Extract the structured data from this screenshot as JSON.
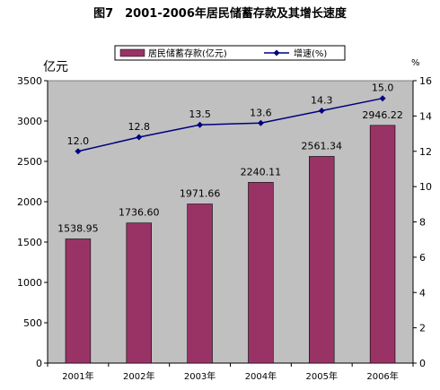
{
  "chart_data": {
    "type": "bar",
    "title": "图7　2001-2006年居民储蓄存款及其增长速度",
    "y_left_unit": "亿元",
    "y_right_unit": "%",
    "categories": [
      "2001年",
      "2002年",
      "2003年",
      "2004年",
      "2005年",
      "2006年"
    ],
    "series": [
      {
        "name": "居民储蓄存款(亿元)",
        "type": "bar",
        "axis": "left",
        "color": "#993366",
        "values": [
          1538.95,
          1736.6,
          1971.66,
          2240.11,
          2561.34,
          2946.22
        ],
        "labels": [
          "1538.95",
          "1736.60",
          "1971.66",
          "2240.11",
          "2561.34",
          "2946.22"
        ]
      },
      {
        "name": "增速(%)",
        "type": "line",
        "axis": "right",
        "color": "#000080",
        "values": [
          12.0,
          12.8,
          13.5,
          13.6,
          14.3,
          15.0
        ],
        "labels": [
          "12.0",
          "12.8",
          "13.5",
          "13.6",
          "14.3",
          "15.0"
        ]
      }
    ],
    "y_left_ticks": [
      "0",
      "500",
      "1000",
      "1500",
      "2000",
      "2500",
      "3000",
      "3500"
    ],
    "y_left_lim": [
      0,
      3500
    ],
    "y_right_ticks": [
      "0",
      "2",
      "4",
      "6",
      "8",
      "10",
      "12",
      "14",
      "16"
    ],
    "y_right_lim": [
      0,
      16
    ],
    "legend_position": "top",
    "plot_background": "#C0C0C0",
    "grid": false
  }
}
